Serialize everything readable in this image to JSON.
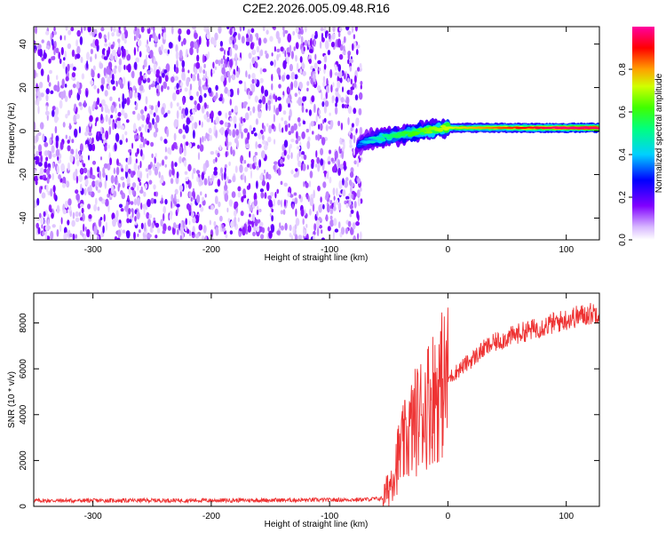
{
  "title": "C2E2.2026.005.09.48.R16",
  "chart_data": [
    {
      "type": "heatmap",
      "xlabel": "Height of straight line (km)",
      "ylabel": "Frequency (Hz)",
      "xlim": [
        -350,
        128
      ],
      "ylim": [
        -50,
        48
      ],
      "x_ticks": [
        -300,
        -200,
        -100,
        0,
        100
      ],
      "y_ticks": [
        -40,
        -20,
        0,
        20,
        40
      ],
      "noise_region_x": [
        -350,
        -73
      ],
      "signal_band": {
        "x_start": -75,
        "x_end": 128,
        "freq_start_hz": -6,
        "freq_end_hz": 1.5,
        "freq_flat_after_km": 0,
        "amplitude_start": 0.25,
        "amplitude_end": 0.95
      },
      "colorbar": {
        "label": "Normalized spectral amplitude",
        "ticks": [
          0.0,
          0.2,
          0.4,
          0.6,
          0.8
        ],
        "tick_labels": [
          "0.0",
          "0.2",
          "0.4",
          "0.6",
          "0.8"
        ],
        "range": [
          0,
          1
        ]
      }
    },
    {
      "type": "line",
      "xlabel": "Height of straight line (km)",
      "ylabel": "SNR (10 * v/v)",
      "xlim": [
        -350,
        128
      ],
      "ylim": [
        0,
        9300
      ],
      "x_ticks": [
        -300,
        -200,
        -100,
        0,
        100
      ],
      "y_ticks": [
        0,
        2000,
        4000,
        6000,
        8000
      ],
      "series": [
        {
          "name": "SNR",
          "color": "#ee3333",
          "x": [
            -350,
            -300,
            -250,
            -200,
            -150,
            -100,
            -70,
            -55,
            -50,
            -45,
            -40,
            -35,
            -30,
            -25,
            -20,
            -15,
            -10,
            -5,
            0,
            10,
            20,
            30,
            40,
            50,
            60,
            70,
            80,
            90,
            100,
            110,
            120,
            128
          ],
          "y": [
            250,
            250,
            260,
            260,
            270,
            280,
            300,
            350,
            800,
            1700,
            2400,
            2900,
            3500,
            3900,
            4300,
            4700,
            5000,
            5300,
            5550,
            6000,
            6400,
            6850,
            7150,
            7350,
            7550,
            7700,
            7850,
            8000,
            8150,
            8300,
            8400,
            8500
          ]
        }
      ]
    }
  ]
}
